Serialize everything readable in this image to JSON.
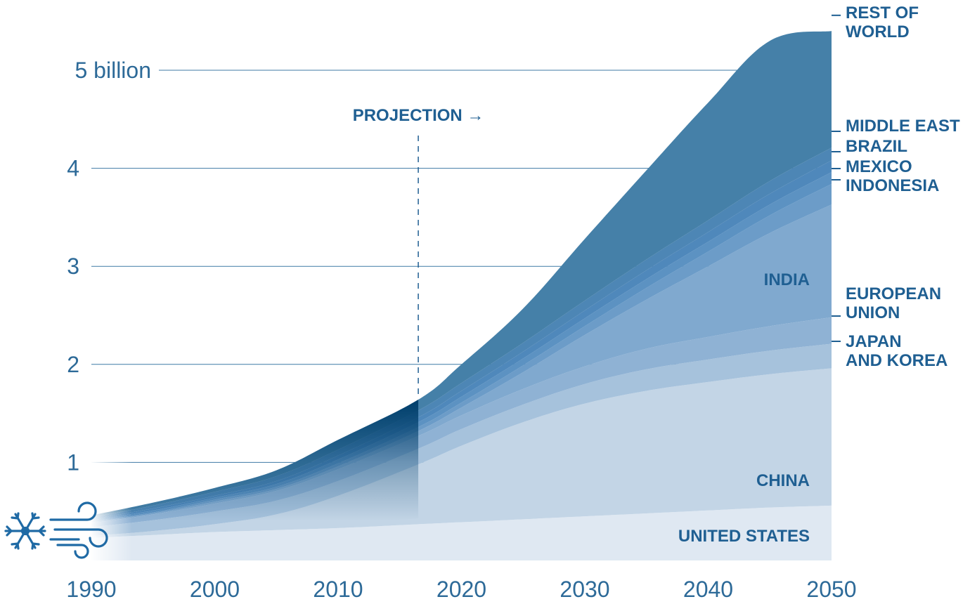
{
  "chart_data": {
    "type": "area",
    "stacked": true,
    "title": "",
    "xlabel": "",
    "ylabel": "",
    "xlim": [
      1990,
      2050
    ],
    "ylim": [
      0,
      5.6
    ],
    "x_ticks": [
      "1990",
      "2000",
      "2010",
      "2020",
      "2030",
      "2040",
      "2050"
    ],
    "y_ticks": [
      {
        "value": 1,
        "label": "1"
      },
      {
        "value": 2,
        "label": "2"
      },
      {
        "value": 3,
        "label": "3"
      },
      {
        "value": 4,
        "label": "4"
      },
      {
        "value": 5,
        "label": "5 billion"
      }
    ],
    "projection_start": 2016.5,
    "projection_label": "PROJECTION →",
    "x": [
      1990,
      1995,
      2000,
      2005,
      2010,
      2016.5,
      2020,
      2025,
      2030,
      2035,
      2040,
      2045,
      2050
    ],
    "series": [
      {
        "name": "UNITED STATES",
        "label_lines": [
          "UNITED STATES"
        ],
        "color": "#dfe8f2",
        "values": [
          0.23,
          0.26,
          0.29,
          0.31,
          0.33,
          0.37,
          0.39,
          0.42,
          0.45,
          0.48,
          0.51,
          0.54,
          0.56
        ]
      },
      {
        "name": "CHINA",
        "label_lines": [
          "CHINA"
        ],
        "color": "#c3d5e6",
        "values": [
          0.02,
          0.04,
          0.08,
          0.16,
          0.33,
          0.61,
          0.78,
          0.99,
          1.15,
          1.25,
          1.31,
          1.36,
          1.4
        ]
      },
      {
        "name": "JAPAN AND KOREA",
        "label_lines": [
          "JAPAN",
          "AND KOREA"
        ],
        "color": "#a6c2dc",
        "values": [
          0.09,
          0.11,
          0.13,
          0.14,
          0.15,
          0.16,
          0.17,
          0.18,
          0.2,
          0.22,
          0.23,
          0.24,
          0.25
        ]
      },
      {
        "name": "EUROPEAN UNION",
        "label_lines": [
          "EUROPEAN",
          "UNION"
        ],
        "color": "#8fb2d4",
        "values": [
          0.04,
          0.06,
          0.08,
          0.1,
          0.12,
          0.13,
          0.14,
          0.16,
          0.18,
          0.21,
          0.23,
          0.25,
          0.27
        ]
      },
      {
        "name": "INDIA",
        "label_lines": [
          "INDIA"
        ],
        "color": "#80a9cf",
        "values": [
          0.01,
          0.01,
          0.02,
          0.02,
          0.03,
          0.05,
          0.08,
          0.17,
          0.32,
          0.5,
          0.72,
          0.95,
          1.15
        ]
      },
      {
        "name": "INDONESIA",
        "label_lines": [
          "INDONESIA"
        ],
        "color": "#6c9cc8",
        "values": [
          0.01,
          0.01,
          0.02,
          0.02,
          0.03,
          0.04,
          0.05,
          0.07,
          0.09,
          0.12,
          0.15,
          0.18,
          0.21
        ]
      },
      {
        "name": "MEXICO",
        "label_lines": [
          "MEXICO"
        ],
        "color": "#5c92c2",
        "values": [
          0.01,
          0.02,
          0.02,
          0.03,
          0.04,
          0.05,
          0.06,
          0.07,
          0.08,
          0.09,
          0.1,
          0.11,
          0.12
        ]
      },
      {
        "name": "BRAZIL",
        "label_lines": [
          "BRAZIL"
        ],
        "color": "#4f88bb",
        "values": [
          0.01,
          0.02,
          0.02,
          0.03,
          0.04,
          0.05,
          0.06,
          0.07,
          0.08,
          0.09,
          0.1,
          0.11,
          0.12
        ]
      },
      {
        "name": "MIDDLE EAST",
        "label_lines": [
          "MIDDLE EAST"
        ],
        "color": "#4d86b5",
        "values": [
          0.02,
          0.03,
          0.04,
          0.05,
          0.06,
          0.07,
          0.08,
          0.09,
          0.1,
          0.11,
          0.12,
          0.13,
          0.13
        ]
      },
      {
        "name": "REST OF WORLD",
        "label_lines": [
          "REST OF",
          "WORLD"
        ],
        "color": "#4580a8",
        "values": [
          0.02,
          0.03,
          0.04,
          0.06,
          0.1,
          0.11,
          0.19,
          0.35,
          0.63,
          0.91,
          1.2,
          1.43,
          1.19
        ]
      }
    ],
    "historical_shade": "#003e6b"
  },
  "colors": {
    "grid": "#3f7aa6",
    "tick_text": "#2d6a98",
    "label_text": "#1f5f92",
    "icon": "#1f6aa5"
  },
  "icons": [
    "snowflake-icon",
    "wind-icon"
  ]
}
